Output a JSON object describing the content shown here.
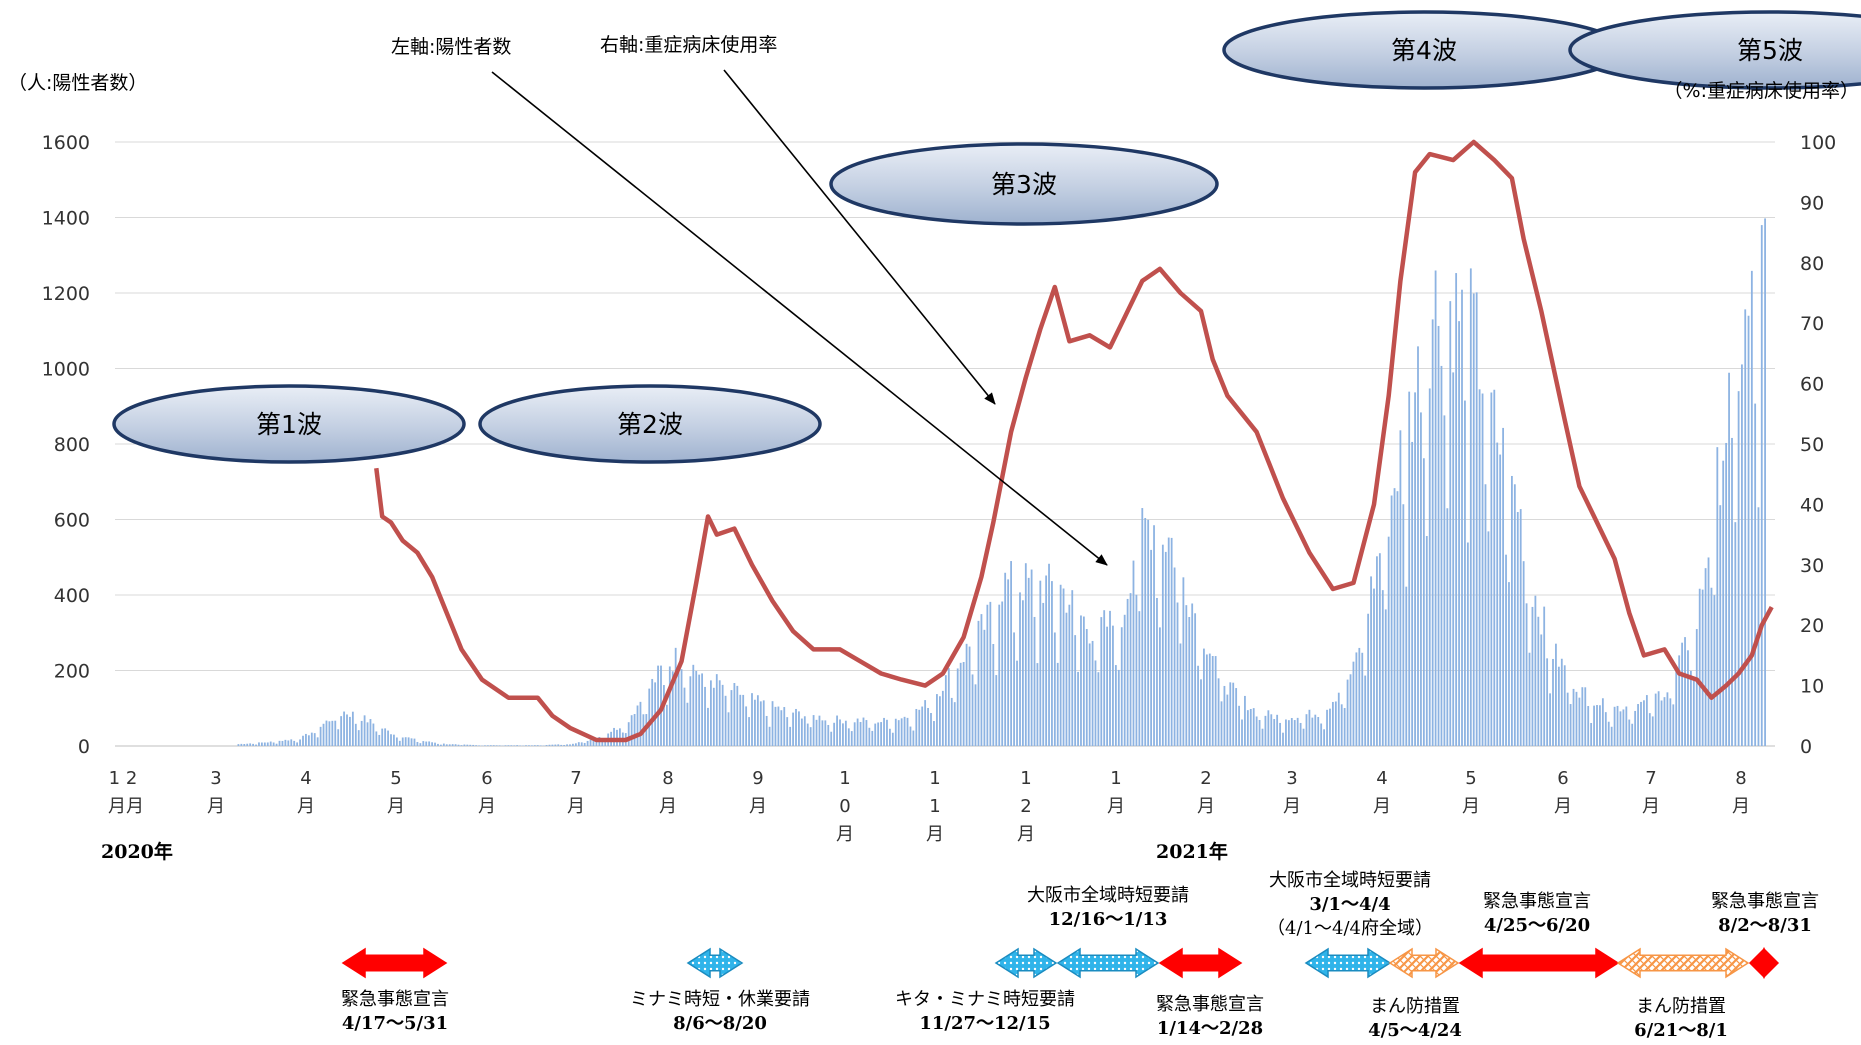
{
  "chart_data": {
    "type": "bar+line",
    "left_axis": {
      "unit_label": "（人:陽性者数）",
      "ticks": [
        "0",
        "200",
        "400",
        "600",
        "800",
        "1000",
        "1200",
        "1400",
        "1600"
      ],
      "ylim": [
        0,
        1600
      ]
    },
    "right_axis": {
      "unit_label": "（%:重症病床使用率）",
      "ticks": [
        "0",
        "10",
        "20",
        "30",
        "40",
        "50",
        "60",
        "70",
        "80",
        "90",
        "100"
      ],
      "ylim": [
        0,
        100
      ]
    },
    "month_labels": [
      "12月",
      "3月",
      "4月",
      "5月",
      "6月",
      "7月",
      "8月",
      "9月",
      "10月",
      "11月",
      "12月",
      "1月",
      "2月",
      "3月",
      "4月",
      "5月",
      "6月",
      "7月",
      "8月"
    ],
    "year_labels": [
      "2020年",
      "2021年"
    ],
    "legend_annotations": {
      "left": "左軸:陽性者数",
      "right": "右軸:重症病床使用率"
    },
    "waves": [
      "第1波",
      "第2波",
      "第3波",
      "第4波",
      "第5波"
    ],
    "series": [
      {
        "name": "陽性者数",
        "axis": "left",
        "kind": "bar",
        "points": [
          [
            "2020-03-10",
            5
          ],
          [
            "2020-03-20",
            10
          ],
          [
            "2020-03-31",
            20
          ],
          [
            "2020-04-05",
            40
          ],
          [
            "2020-04-10",
            70
          ],
          [
            "2020-04-15",
            90
          ],
          [
            "2020-04-20",
            80
          ],
          [
            "2020-04-25",
            60
          ],
          [
            "2020-05-01",
            35
          ],
          [
            "2020-05-10",
            15
          ],
          [
            "2020-05-20",
            5
          ],
          [
            "2020-06-01",
            2
          ],
          [
            "2020-06-20",
            2
          ],
          [
            "2020-07-01",
            5
          ],
          [
            "2020-07-10",
            20
          ],
          [
            "2020-07-20",
            60
          ],
          [
            "2020-07-25",
            120
          ],
          [
            "2020-08-01",
            200
          ],
          [
            "2020-08-07",
            240
          ],
          [
            "2020-08-15",
            190
          ],
          [
            "2020-08-25",
            150
          ],
          [
            "2020-09-05",
            110
          ],
          [
            "2020-09-20",
            80
          ],
          [
            "2020-10-01",
            70
          ],
          [
            "2020-10-15",
            65
          ],
          [
            "2020-10-25",
            80
          ],
          [
            "2020-11-01",
            120
          ],
          [
            "2020-11-10",
            220
          ],
          [
            "2020-11-20",
            330
          ],
          [
            "2020-11-25",
            430
          ],
          [
            "2020-12-05",
            430
          ],
          [
            "2020-12-15",
            420
          ],
          [
            "2020-12-25",
            310
          ],
          [
            "2021-01-05",
            330
          ],
          [
            "2021-01-10",
            560
          ],
          [
            "2021-01-15",
            600
          ],
          [
            "2021-01-22",
            540
          ],
          [
            "2021-02-01",
            310
          ],
          [
            "2021-02-10",
            160
          ],
          [
            "2021-02-20",
            90
          ],
          [
            "2021-03-01",
            75
          ],
          [
            "2021-03-15",
            90
          ],
          [
            "2021-03-25",
            200
          ],
          [
            "2021-04-01",
            450
          ],
          [
            "2021-04-08",
            700
          ],
          [
            "2021-04-15",
            950
          ],
          [
            "2021-04-22",
            1180
          ],
          [
            "2021-04-30",
            1150
          ],
          [
            "2021-05-05",
            1100
          ],
          [
            "2021-05-12",
            850
          ],
          [
            "2021-05-20",
            650
          ],
          [
            "2021-05-25",
            420
          ],
          [
            "2021-06-01",
            250
          ],
          [
            "2021-06-10",
            150
          ],
          [
            "2021-06-20",
            100
          ],
          [
            "2021-07-01",
            110
          ],
          [
            "2021-07-10",
            150
          ],
          [
            "2021-07-20",
            330
          ],
          [
            "2021-07-28",
            750
          ],
          [
            "2021-08-02",
            1000
          ],
          [
            "2021-08-07",
            1150
          ],
          [
            "2021-08-11",
            1300
          ]
        ]
      },
      {
        "name": "重症病床使用率",
        "axis": "right",
        "kind": "line",
        "color": "#c0504d",
        "points": [
          [
            "2020-04-26",
            46
          ],
          [
            "2020-04-28",
            38
          ],
          [
            "2020-05-01",
            37
          ],
          [
            "2020-05-05",
            34
          ],
          [
            "2020-05-10",
            32
          ],
          [
            "2020-05-15",
            28
          ],
          [
            "2020-05-20",
            22
          ],
          [
            "2020-05-25",
            16
          ],
          [
            "2020-06-01",
            11
          ],
          [
            "2020-06-10",
            8
          ],
          [
            "2020-06-20",
            8
          ],
          [
            "2020-06-25",
            5
          ],
          [
            "2020-07-01",
            3
          ],
          [
            "2020-07-10",
            1
          ],
          [
            "2020-07-20",
            1
          ],
          [
            "2020-07-25",
            2
          ],
          [
            "2020-08-01",
            6
          ],
          [
            "2020-08-08",
            14
          ],
          [
            "2020-08-13",
            27
          ],
          [
            "2020-08-17",
            38
          ],
          [
            "2020-08-20",
            35
          ],
          [
            "2020-08-26",
            36
          ],
          [
            "2020-09-01",
            30
          ],
          [
            "2020-09-08",
            24
          ],
          [
            "2020-09-15",
            19
          ],
          [
            "2020-09-22",
            16
          ],
          [
            "2020-10-01",
            16
          ],
          [
            "2020-10-08",
            14
          ],
          [
            "2020-10-15",
            12
          ],
          [
            "2020-10-22",
            11
          ],
          [
            "2020-10-30",
            10
          ],
          [
            "2020-11-05",
            12
          ],
          [
            "2020-11-12",
            18
          ],
          [
            "2020-11-18",
            28
          ],
          [
            "2020-11-22",
            37
          ],
          [
            "2020-11-28",
            52
          ],
          [
            "2020-12-03",
            61
          ],
          [
            "2020-12-08",
            69
          ],
          [
            "2020-12-13",
            76
          ],
          [
            "2020-12-18",
            67
          ],
          [
            "2020-12-25",
            68
          ],
          [
            "2021-01-01",
            66
          ],
          [
            "2021-01-06",
            71
          ],
          [
            "2021-01-12",
            77
          ],
          [
            "2021-01-18",
            79
          ],
          [
            "2021-01-25",
            75
          ],
          [
            "2021-02-01",
            72
          ],
          [
            "2021-02-05",
            64
          ],
          [
            "2021-02-10",
            58
          ],
          [
            "2021-02-20",
            52
          ],
          [
            "2021-03-01",
            41
          ],
          [
            "2021-03-10",
            32
          ],
          [
            "2021-03-18",
            26
          ],
          [
            "2021-03-25",
            27
          ],
          [
            "2021-04-01",
            40
          ],
          [
            "2021-04-06",
            58
          ],
          [
            "2021-04-10",
            77
          ],
          [
            "2021-04-15",
            95
          ],
          [
            "2021-04-20",
            98
          ],
          [
            "2021-04-28",
            97
          ],
          [
            "2021-05-05",
            100
          ],
          [
            "2021-05-12",
            97
          ],
          [
            "2021-05-18",
            94
          ],
          [
            "2021-05-22",
            84
          ],
          [
            "2021-05-28",
            72
          ],
          [
            "2021-06-05",
            54
          ],
          [
            "2021-06-10",
            43
          ],
          [
            "2021-06-15",
            38
          ],
          [
            "2021-06-22",
            31
          ],
          [
            "2021-06-27",
            22
          ],
          [
            "2021-07-02",
            15
          ],
          [
            "2021-07-09",
            16
          ],
          [
            "2021-07-14",
            12
          ],
          [
            "2021-07-20",
            11
          ],
          [
            "2021-07-25",
            8
          ],
          [
            "2021-07-30",
            10
          ],
          [
            "2021-08-03",
            12
          ],
          [
            "2021-08-07",
            15
          ],
          [
            "2021-08-10",
            20
          ],
          [
            "2021-08-13",
            23
          ]
        ]
      }
    ],
    "events": [
      {
        "label": "緊急事態宣言",
        "dates": "4/17～5/31",
        "style": "red"
      },
      {
        "label": "ミナミ時短・休業要請",
        "dates": "8/6～8/20",
        "style": "blue"
      },
      {
        "label": "キタ・ミナミ時短要請",
        "dates": "11/27～12/15",
        "style": "blue"
      },
      {
        "label": "大阪市全域時短要請",
        "dates": "12/16～1/13",
        "style": "blue"
      },
      {
        "label": "緊急事態宣言",
        "dates": "1/14～2/28",
        "style": "red"
      },
      {
        "label": "大阪市全域時短要請",
        "dates": "3/1～4/4",
        "note": "（4/1～4/4府全域）",
        "style": "blue"
      },
      {
        "label": "まん防措置",
        "dates": "4/5～4/24",
        "style": "orange"
      },
      {
        "label": "緊急事態宣言",
        "dates": "4/25～6/20",
        "style": "red"
      },
      {
        "label": "まん防措置",
        "dates": "6/21～8/1",
        "style": "orange"
      },
      {
        "label": "緊急事態宣言",
        "dates": "8/2～8/31",
        "style": "red"
      }
    ]
  }
}
